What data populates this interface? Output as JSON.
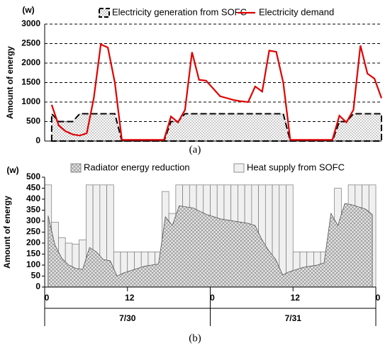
{
  "chart_data": [
    {
      "type": "line",
      "caption": "(a)",
      "unit": "(w)",
      "ylabel": "Amount of energy",
      "ylim": [
        0,
        3000
      ],
      "yticks": [
        0,
        500,
        1000,
        1500,
        2000,
        2500,
        3000
      ],
      "grid": true,
      "xlim": [
        0,
        48
      ],
      "x": [
        1,
        2,
        3,
        4,
        5,
        6,
        7,
        8,
        9,
        10,
        11,
        12,
        13,
        14,
        15,
        16,
        17,
        18,
        19,
        20,
        21,
        22,
        23,
        24,
        25,
        26,
        27,
        28,
        29,
        30,
        31,
        32,
        33,
        34,
        35,
        36,
        37,
        38,
        39,
        40,
        41,
        42,
        43,
        44,
        45,
        46,
        47,
        48
      ],
      "series": [
        {
          "name": "Electricity generation from SOFC",
          "color": "#000000",
          "kind": "area",
          "values": [
            700,
            500,
            500,
            500,
            700,
            700,
            700,
            700,
            700,
            700,
            0,
            0,
            0,
            0,
            0,
            0,
            0,
            500,
            500,
            700,
            700,
            700,
            700,
            700,
            700,
            700,
            700,
            700,
            700,
            700,
            700,
            700,
            700,
            700,
            0,
            0,
            0,
            0,
            0,
            0,
            0,
            500,
            500,
            700,
            700,
            700,
            700,
            700
          ]
        },
        {
          "name": "Electricity demand",
          "color": "#e00000",
          "kind": "line",
          "values": [
            930,
            400,
            250,
            170,
            140,
            200,
            1100,
            2480,
            2400,
            1500,
            30,
            30,
            30,
            30,
            30,
            30,
            30,
            630,
            480,
            800,
            2280,
            1570,
            1550,
            1350,
            1150,
            1100,
            1050,
            1020,
            1000,
            1400,
            1270,
            2320,
            2290,
            1500,
            30,
            30,
            30,
            30,
            30,
            30,
            30,
            650,
            480,
            800,
            2450,
            1730,
            1600,
            1100
          ]
        }
      ]
    },
    {
      "type": "bar",
      "caption": "(b)",
      "unit": "(w)",
      "ylabel": "Amount of energy",
      "ylim": [
        0,
        500
      ],
      "yticks": [
        0,
        50,
        100,
        150,
        200,
        250,
        300,
        350,
        400,
        450,
        500
      ],
      "xlim": [
        0,
        48
      ],
      "xticks": [
        0,
        12,
        {
          "value": 24,
          "label": "0"
        },
        {
          "value": 36,
          "label": "12"
        },
        {
          "value": 48,
          "label": "0"
        }
      ],
      "day_labels": [
        "7/30",
        "7/31"
      ],
      "series": [
        {
          "name": "Radiator energy reduction",
          "color": "#555555",
          "kind": "area",
          "values": [
            325,
            190,
            130,
            100,
            85,
            80,
            180,
            160,
            125,
            120,
            50,
            65,
            75,
            85,
            95,
            100,
            105,
            320,
            280,
            370,
            365,
            360,
            345,
            330,
            320,
            310,
            305,
            300,
            295,
            290,
            280,
            215,
            165,
            125,
            55,
            70,
            80,
            90,
            95,
            100,
            110,
            335,
            280,
            380,
            375,
            365,
            355,
            330
          ]
        },
        {
          "name": "Heat supply from SOFC",
          "color": "#f0f0f0",
          "kind": "bar",
          "values": [
            465,
            295,
            225,
            200,
            195,
            215,
            465,
            465,
            465,
            465,
            160,
            160,
            160,
            160,
            160,
            160,
            160,
            435,
            335,
            465,
            465,
            465,
            465,
            465,
            465,
            465,
            465,
            465,
            465,
            465,
            465,
            465,
            465,
            465,
            465,
            465,
            160,
            160,
            160,
            160,
            160,
            160,
            450,
            345,
            465,
            465,
            465,
            465
          ]
        }
      ]
    }
  ]
}
